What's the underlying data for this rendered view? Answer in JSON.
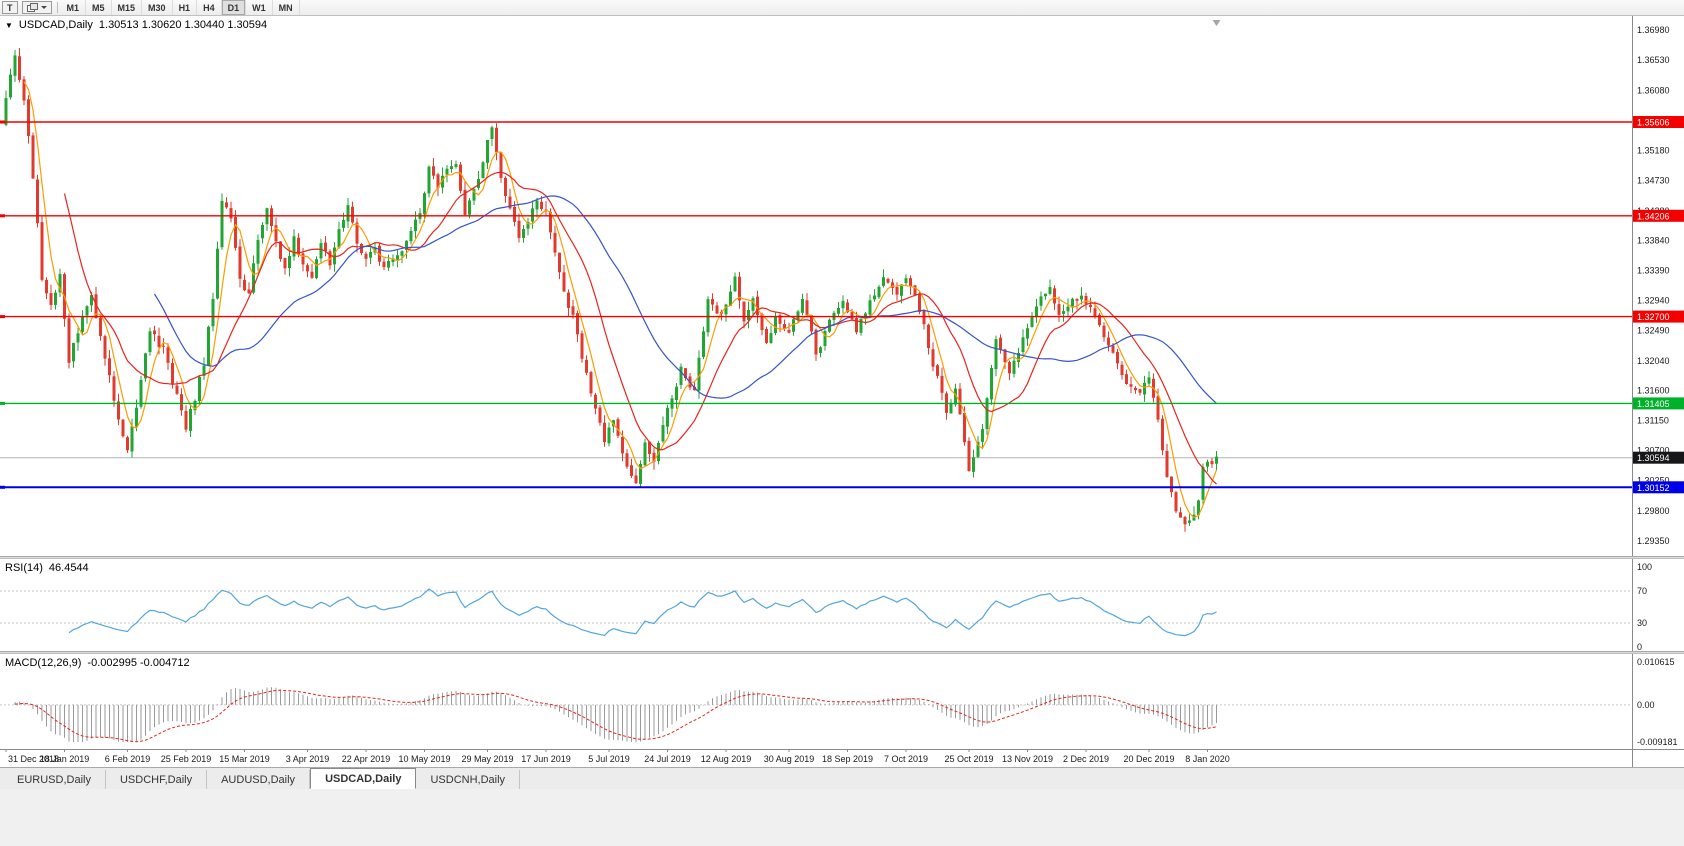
{
  "toolbar": {
    "chart_type_label": "T",
    "timeframes": [
      "M1",
      "M5",
      "M15",
      "M30",
      "H1",
      "H4",
      "D1",
      "W1",
      "MN"
    ],
    "active_timeframe": "D1"
  },
  "chart": {
    "title": "USDCAD,Daily",
    "ohlc": "1.30513 1.30620 1.30440 1.30594"
  },
  "rsi": {
    "label": "RSI(14)",
    "value": "46.4544",
    "axis": [
      "100",
      "70",
      "30",
      "0"
    ]
  },
  "macd": {
    "label": "MACD(12,26,9)",
    "values": "-0.002995 -0.004712",
    "axis": [
      "0.010615",
      "0.00",
      "-0.009181"
    ]
  },
  "tabs": {
    "items": [
      {
        "label": "EURUSD,Daily"
      },
      {
        "label": "USDCHF,Daily"
      },
      {
        "label": "AUDUSD,Daily"
      },
      {
        "label": "USDCAD,Daily"
      },
      {
        "label": "USDCNH,Daily"
      }
    ],
    "active": "USDCAD,Daily"
  },
  "chart_data": {
    "type": "candlestick",
    "symbol": "USDCAD",
    "period": "Daily",
    "ohlc_display": {
      "open": "1.30513",
      "high": "1.30620",
      "low": "1.30440",
      "close": "1.30594"
    },
    "y_ticks": [
      "1.36980",
      "1.36530",
      "1.36080",
      "1.35630",
      "1.35180",
      "1.34730",
      "1.34280",
      "1.33840",
      "1.33390",
      "1.32940",
      "1.32490",
      "1.32040",
      "1.31600",
      "1.31150",
      "1.30700",
      "1.30250",
      "1.29800",
      "1.29350"
    ],
    "x_labels": [
      "31 Dec 2018",
      "18 Jan 2019",
      "6 Feb 2019",
      "25 Feb 2019",
      "15 Mar 2019",
      "3 Apr 2019",
      "22 Apr 2019",
      "10 May 2019",
      "29 May 2019",
      "17 Jun 2019",
      "5 Jul 2019",
      "24 Jul 2019",
      "12 Aug 2019",
      "30 Aug 2019",
      "18 Sep 2019",
      "7 Oct 2019",
      "25 Oct 2019",
      "13 Nov 2019",
      "2 Dec 2019",
      "20 Dec 2019",
      "8 Jan 2020"
    ],
    "price_top": 1.3698,
    "price_bottom": 1.2935,
    "n_candles": 270,
    "noise_seed": 9,
    "noise_amp": 0.0012,
    "wick_amp": 0.0013,
    "up_color": "#21a633",
    "down_color": "#e23a2e",
    "levels": [
      {
        "label": "1.35606",
        "price": 1.35606,
        "color": "#f40000",
        "width": 1.4
      },
      {
        "label": "1.34206",
        "price": 1.34206,
        "color": "#f40000",
        "width": 1.4
      },
      {
        "label": "1.32700",
        "price": 1.327,
        "color": "#f40000",
        "width": 1.4
      },
      {
        "label": "1.31405",
        "price": 1.31405,
        "color": "#00b22a",
        "width": 1.4
      },
      {
        "label": "1.30152",
        "price": 1.30152,
        "color": "#0000e6",
        "width": 2
      }
    ],
    "current_price": {
      "label": "1.30594",
      "price": 1.30594,
      "box_color": "#17171a",
      "line_color": "#b4b4b4"
    },
    "moving_averages": [
      {
        "name": "ma-fast",
        "period": 5,
        "color": "#ff9c00"
      },
      {
        "name": "ma-mid",
        "period": 14,
        "color": "#e8241c"
      },
      {
        "name": "ma-slow",
        "period": 34,
        "color": "#3653cc"
      }
    ],
    "rsi": {
      "period": 14,
      "current": 46.4544,
      "levels": [
        70,
        30
      ],
      "color": "#53a6dc"
    },
    "macd": {
      "fast": 12,
      "slow": 26,
      "signal": 9,
      "current_macd": -0.002995,
      "current_signal": -0.004712,
      "axis_max": 0.010615,
      "axis_min": -0.009181,
      "hist_color": "#9a9a9a",
      "signal_color": "#e8241c"
    },
    "close_anchors": [
      [
        0,
        1.36
      ],
      [
        2,
        1.3655
      ],
      [
        4,
        1.359
      ],
      [
        6,
        1.348
      ],
      [
        8,
        1.333
      ],
      [
        10,
        1.329
      ],
      [
        12,
        1.333
      ],
      [
        14,
        1.32
      ],
      [
        16,
        1.325
      ],
      [
        19,
        1.33
      ],
      [
        22,
        1.321
      ],
      [
        25,
        1.312
      ],
      [
        27,
        1.3075
      ],
      [
        29,
        1.313
      ],
      [
        32,
        1.325
      ],
      [
        35,
        1.322
      ],
      [
        38,
        1.315
      ],
      [
        40,
        1.3105
      ],
      [
        42,
        1.315
      ],
      [
        44,
        1.32
      ],
      [
        46,
        1.33
      ],
      [
        48,
        1.3445
      ],
      [
        50,
        1.3415
      ],
      [
        52,
        1.333
      ],
      [
        54,
        1.33
      ],
      [
        56,
        1.339
      ],
      [
        58,
        1.343
      ],
      [
        60,
        1.338
      ],
      [
        62,
        1.334
      ],
      [
        64,
        1.3385
      ],
      [
        66,
        1.3345
      ],
      [
        68,
        1.333
      ],
      [
        70,
        1.3385
      ],
      [
        72,
        1.335
      ],
      [
        74,
        1.3395
      ],
      [
        76,
        1.344
      ],
      [
        78,
        1.338
      ],
      [
        80,
        1.3355
      ],
      [
        82,
        1.3375
      ],
      [
        84,
        1.334
      ],
      [
        86,
        1.3355
      ],
      [
        88,
        1.337
      ],
      [
        90,
        1.3395
      ],
      [
        92,
        1.343
      ],
      [
        94,
        1.349
      ],
      [
        96,
        1.3465
      ],
      [
        98,
        1.3485
      ],
      [
        100,
        1.3495
      ],
      [
        102,
        1.3425
      ],
      [
        104,
        1.3455
      ],
      [
        106,
        1.3505
      ],
      [
        108,
        1.3555
      ],
      [
        110,
        1.348
      ],
      [
        112,
        1.343
      ],
      [
        114,
        1.339
      ],
      [
        116,
        1.3415
      ],
      [
        118,
        1.344
      ],
      [
        120,
        1.343
      ],
      [
        122,
        1.337
      ],
      [
        124,
        1.3305
      ],
      [
        126,
        1.327
      ],
      [
        128,
        1.321
      ],
      [
        130,
        1.316
      ],
      [
        133,
        1.3085
      ],
      [
        135,
        1.3115
      ],
      [
        137,
        1.306
      ],
      [
        140,
        1.3025
      ],
      [
        142,
        1.308
      ],
      [
        144,
        1.305
      ],
      [
        147,
        1.313
      ],
      [
        150,
        1.319
      ],
      [
        153,
        1.316
      ],
      [
        156,
        1.33
      ],
      [
        158,
        1.327
      ],
      [
        160,
        1.329
      ],
      [
        162,
        1.333
      ],
      [
        164,
        1.326
      ],
      [
        166,
        1.33
      ],
      [
        169,
        1.323
      ],
      [
        171,
        1.327
      ],
      [
        174,
        1.325
      ],
      [
        177,
        1.33
      ],
      [
        180,
        1.3215
      ],
      [
        183,
        1.326
      ],
      [
        186,
        1.329
      ],
      [
        189,
        1.325
      ],
      [
        192,
        1.329
      ],
      [
        195,
        1.333
      ],
      [
        198,
        1.33
      ],
      [
        200,
        1.333
      ],
      [
        203,
        1.328
      ],
      [
        206,
        1.32
      ],
      [
        209,
        1.313
      ],
      [
        211,
        1.316
      ],
      [
        214,
        1.3045
      ],
      [
        217,
        1.31
      ],
      [
        220,
        1.3235
      ],
      [
        223,
        1.318
      ],
      [
        226,
        1.324
      ],
      [
        229,
        1.329
      ],
      [
        232,
        1.331
      ],
      [
        234,
        1.327
      ],
      [
        237,
        1.33
      ],
      [
        240,
        1.3295
      ],
      [
        243,
        1.326
      ],
      [
        246,
        1.321
      ],
      [
        249,
        1.317
      ],
      [
        252,
        1.316
      ],
      [
        254,
        1.318
      ],
      [
        256,
        1.312
      ],
      [
        258,
        1.303
      ],
      [
        260,
        1.298
      ],
      [
        262,
        1.296
      ],
      [
        264,
        1.2975
      ],
      [
        265,
        1.2995
      ],
      [
        266,
        1.304
      ],
      [
        267,
        1.3055
      ],
      [
        268,
        1.3045
      ],
      [
        269,
        1.30594
      ]
    ]
  }
}
